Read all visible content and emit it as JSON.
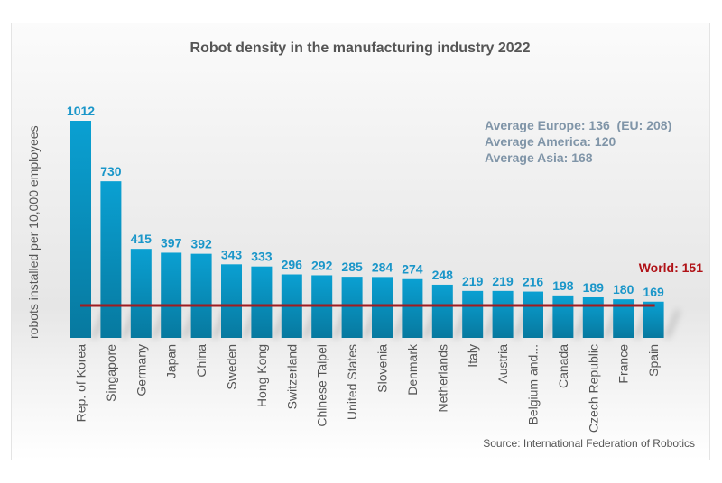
{
  "chart_data": {
    "type": "bar",
    "title": "Robot density in the manufacturing industry 2022",
    "xlabel": "",
    "ylabel": "robots installed per 10,000 employees",
    "ylim": [
      0,
      1012
    ],
    "grid": false,
    "categories": [
      "Rep. of Korea",
      "Singapore",
      "Germany",
      "Japan",
      "China",
      "Sweden",
      "Hong Kong",
      "Switzerland",
      "Chinese Taipei",
      "United States",
      "Slovenia",
      "Denmark",
      "Netherlands",
      "Italy",
      "Austria",
      "Belgium and...",
      "Canada",
      "Czech Republic",
      "France",
      "Spain"
    ],
    "values": [
      1012,
      730,
      415,
      397,
      392,
      343,
      333,
      296,
      292,
      285,
      284,
      274,
      248,
      219,
      219,
      216,
      198,
      189,
      180,
      169
    ],
    "reference_line": {
      "label": "World: 151",
      "value": 151
    },
    "annotations": [
      "Average Europe: 136  (EU: 208)",
      "Average America: 120",
      "Average Asia: 168"
    ],
    "source": "Source: International Federation of Robotics",
    "colors": {
      "bar": "#0a94c4",
      "value_label": "#1a96c9",
      "world_line": "#a01c20",
      "annotation": "#8095a8"
    }
  }
}
